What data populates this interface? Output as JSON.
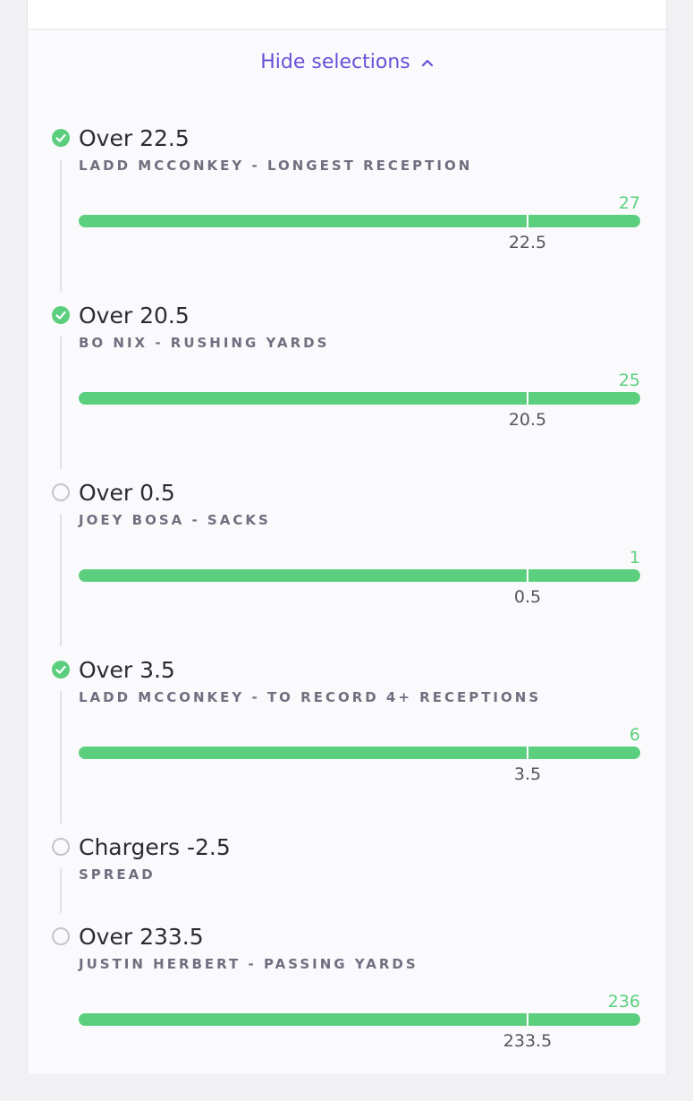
{
  "toggle": "Hide selections",
  "selections": [
    {
      "title": "Over 22.5",
      "subtitle": "LADD MCCONKEY - LONGEST RECEPTION",
      "checked": true,
      "progress": {
        "value": 27,
        "line": 22.5
      }
    },
    {
      "title": "Over 20.5",
      "subtitle": "BO NIX - RUSHING YARDS",
      "checked": true,
      "progress": {
        "value": 25,
        "line": 20.5
      }
    },
    {
      "title": "Over 0.5",
      "subtitle": "JOEY BOSA - SACKS",
      "checked": false,
      "progress": {
        "value": 1,
        "line": 0.5
      }
    },
    {
      "title": "Over 3.5",
      "subtitle": "LADD MCCONKEY - TO RECORD 4+ RECEPTIONS",
      "checked": true,
      "progress": {
        "value": 6,
        "line": 3.5
      }
    },
    {
      "title": "Chargers -2.5",
      "subtitle": "SPREAD",
      "checked": false
    },
    {
      "title": "Over 233.5",
      "subtitle": "JUSTIN HERBERT - PASSING YARDS",
      "checked": false,
      "progress": {
        "value": 236,
        "line": 233.5
      }
    }
  ]
}
